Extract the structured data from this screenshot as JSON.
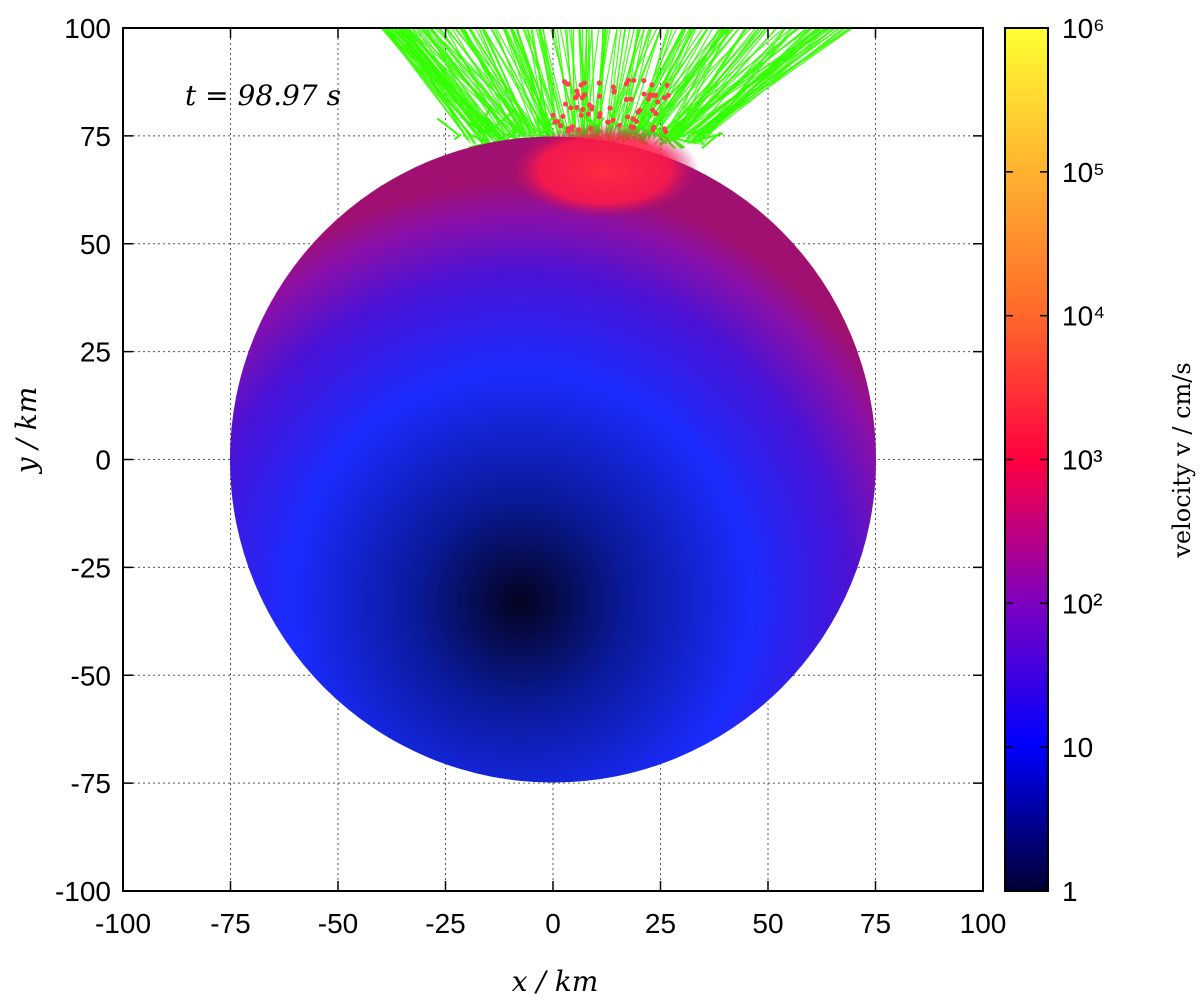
{
  "chart_data": {
    "type": "scatter",
    "title": "",
    "xlabel": "x / km",
    "ylabel": "y / km",
    "xlim": [
      -100,
      100
    ],
    "ylim": [
      -100,
      100
    ],
    "xticks": [
      "-100",
      "-75",
      "-50",
      "-25",
      "0",
      "25",
      "50",
      "75",
      "100"
    ],
    "yticks": [
      "-100",
      "-75",
      "-50",
      "-25",
      "0",
      "25",
      "50",
      "75",
      "100"
    ],
    "grid": true,
    "annotation": "t = 98.97 s",
    "body": {
      "shape": "disk",
      "center": [
        0,
        0
      ],
      "radius_km": 75,
      "color_encoding": "velocity (log scale)"
    },
    "ejecta": {
      "color": "#33ff00",
      "description": "particle trails leaving the top of the disk",
      "x_range_km": [
        -35,
        65
      ],
      "y_range_km": [
        70,
        100
      ]
    },
    "colorbar": {
      "label": "velocity v / cm/s",
      "scale": "log",
      "range": [
        1,
        1000000
      ],
      "ticks": [
        "1",
        "10",
        "10²",
        "10³",
        "10⁴",
        "10⁵",
        "10⁶"
      ],
      "colors": [
        "#000033",
        "#0000ff",
        "#7a00c2",
        "#ff0040",
        "#ff6a2a",
        "#ffb030",
        "#ffff33"
      ]
    }
  }
}
